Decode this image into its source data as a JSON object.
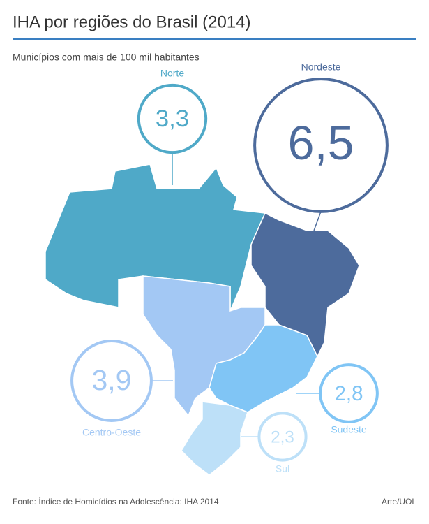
{
  "header": {
    "title": "IHA por regiões do Brasil (2014)",
    "subtitle": "Municípios com mais de 100 mil habitantes"
  },
  "regions": [
    {
      "name": "Norte",
      "value": 3.3,
      "label": "3,3",
      "color": "#4fa9c8"
    },
    {
      "name": "Nordeste",
      "value": 6.5,
      "label": "6,5",
      "color": "#4d6b9c"
    },
    {
      "name": "Centro-Oeste",
      "value": 3.9,
      "label": "3,9",
      "color": "#a3c8f4"
    },
    {
      "name": "Sudeste",
      "value": 2.8,
      "label": "2,8",
      "color": "#80c5f5"
    },
    {
      "name": "Sul",
      "value": 2.3,
      "label": "2,3",
      "color": "#bde0f8"
    }
  ],
  "footer": {
    "source": "Fonte: Índice de Homicídios na Adolescência: IHA 2014",
    "credit": "Arte/UOL"
  }
}
